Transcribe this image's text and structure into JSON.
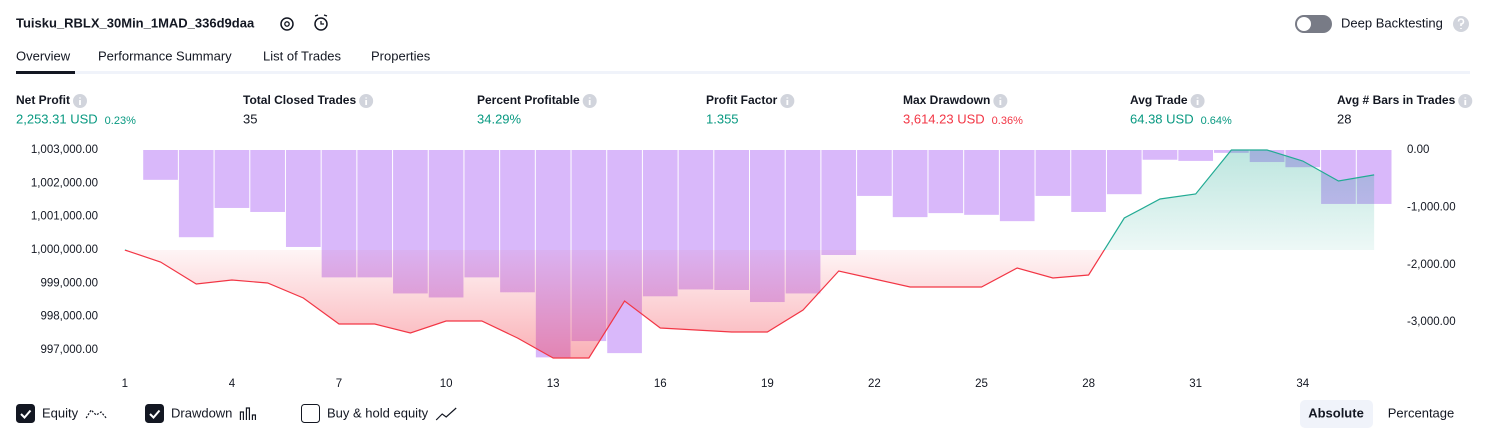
{
  "header": {
    "title": "Tuisku_RBLX_30Min_1MAD_336d9daa",
    "toggle_label": "Deep Backtesting"
  },
  "tabs": [
    "Overview",
    "Performance Summary",
    "List of Trades",
    "Properties"
  ],
  "metrics": [
    {
      "label": "Net Profit",
      "value": "2,253.31 USD",
      "percent": "0.23%",
      "color": "#089981"
    },
    {
      "label": "Total Closed Trades",
      "value": "35",
      "color": "#131722"
    },
    {
      "label": "Percent Profitable",
      "value": "34.29%",
      "color": "#089981"
    },
    {
      "label": "Profit Factor",
      "value": "1.355",
      "color": "#089981"
    },
    {
      "label": "Max Drawdown",
      "value": "3,614.23 USD",
      "percent": "0.36%",
      "color": "#f23645"
    },
    {
      "label": "Avg Trade",
      "value": "64.38 USD",
      "percent": "0.64%",
      "color": "#089981"
    },
    {
      "label": "Avg # Bars in Trades",
      "value": "28",
      "color": "#131722"
    }
  ],
  "chart_data": {
    "type": "combo",
    "xlim": [
      0.5,
      36.5
    ],
    "xticks": [
      1,
      4,
      7,
      10,
      13,
      16,
      19,
      22,
      25,
      28,
      31,
      34
    ],
    "ylim": [
      996700,
      1003000
    ],
    "yticks": [
      {
        "value": 1003000,
        "label": "1,003,000.00"
      },
      {
        "value": 1002000,
        "label": "1,002,000.00"
      },
      {
        "value": 1001000,
        "label": "1,001,000.00"
      },
      {
        "value": 1000000,
        "label": "1,000,000.00"
      },
      {
        "value": 999000,
        "label": "999,000.00"
      },
      {
        "value": 998000,
        "label": "998,000.00"
      },
      {
        "value": 997000,
        "label": "997,000.00"
      }
    ],
    "y2lim": [
      -3660,
      0
    ],
    "y2ticks": [
      {
        "value": 0,
        "label": "0.00"
      },
      {
        "value": -1000,
        "label": "-1,000.00"
      },
      {
        "value": -2000,
        "label": "-2,000.00"
      },
      {
        "value": -3000,
        "label": "-3,000.00"
      }
    ],
    "series": [
      {
        "name": "Equity",
        "type": "line",
        "visible": true,
        "color_up": "#22ab94",
        "color_down": "#f23645",
        "x": [
          1,
          2,
          3,
          4,
          5,
          6,
          7,
          8,
          9,
          10,
          11,
          12,
          13,
          14,
          15,
          16,
          17,
          18,
          19,
          20,
          21,
          22,
          23,
          24,
          25,
          26,
          27,
          28,
          29,
          30,
          31,
          32,
          33,
          34,
          35,
          36
        ],
        "values": [
          1000000,
          999640,
          998980,
          999100,
          999010,
          998560,
          997780,
          997780,
          997510,
          997870,
          997870,
          997360,
          996760,
          996760,
          998470,
          997660,
          997600,
          997540,
          997540,
          998200,
          999370,
          999130,
          998890,
          998890,
          998890,
          999460,
          999160,
          999250,
          1000960,
          1001530,
          1001680,
          1003000,
          1003000,
          1002670,
          1002070,
          1002253
        ]
      },
      {
        "name": "Drawdown",
        "type": "bar",
        "axis": "y2",
        "visible": true,
        "color": "#d9b8fa",
        "x": [
          2,
          3,
          4,
          5,
          6,
          7,
          8,
          9,
          10,
          11,
          12,
          13,
          14,
          15,
          16,
          17,
          18,
          19,
          20,
          21,
          22,
          23,
          24,
          25,
          26,
          27,
          28,
          29,
          30,
          31,
          32,
          33,
          34,
          35,
          36
        ],
        "values": [
          -520,
          -1520,
          -1010,
          -1080,
          -1690,
          -2220,
          -2220,
          -2500,
          -2570,
          -2220,
          -2480,
          -3614,
          -3330,
          -3540,
          -2550,
          -2430,
          -2440,
          -2650,
          -2500,
          -1830,
          -800,
          -1170,
          -1100,
          -1130,
          -1240,
          -800,
          -1080,
          -770,
          -170,
          -190,
          -50,
          -210,
          -300,
          -940,
          -940
        ]
      },
      {
        "name": "Buy & hold equity",
        "type": "line",
        "visible": false,
        "x": [],
        "values": []
      }
    ]
  },
  "view_buttons": [
    "Absolute",
    "Percentage"
  ]
}
